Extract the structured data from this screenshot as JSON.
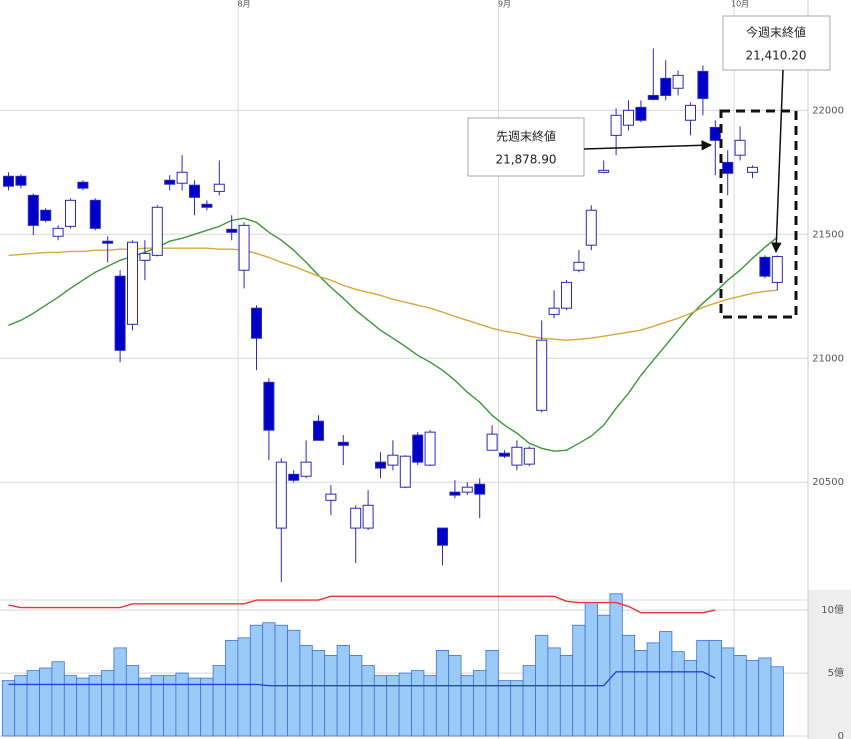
{
  "chart_data": [
    {
      "type": "candlestick",
      "categories": [
        null,
        null,
        null,
        null,
        null,
        null,
        null,
        null,
        null,
        null,
        null,
        null,
        null,
        null,
        null,
        null,
        null,
        null,
        null,
        "8月",
        null,
        null,
        null,
        null,
        null,
        null,
        null,
        null,
        null,
        null,
        null,
        null,
        null,
        null,
        null,
        null,
        null,
        null,
        null,
        null,
        "9月",
        null,
        null,
        null,
        null,
        null,
        null,
        null,
        null,
        null,
        null,
        null,
        null,
        null,
        null,
        null,
        null,
        null,
        null,
        "10月",
        null,
        null,
        null
      ],
      "open": [
        21734,
        21734,
        21657,
        21597,
        21492,
        21532,
        21710,
        21637,
        21472,
        21331,
        21137,
        21395,
        21415,
        21718,
        21706,
        21698,
        21621,
        21673,
        21520,
        21355,
        21202,
        20903,
        20315,
        20532,
        20524,
        20746,
        20427,
        20661,
        20315,
        20315,
        20581,
        20569,
        20480,
        20690,
        20569,
        20315,
        20460,
        20460,
        20492,
        20629,
        20617,
        20569,
        20573,
        20790,
        21177,
        21202,
        21355,
        21456,
        21750,
        21899,
        21940,
        22012,
        22060,
        22129,
        22089,
        21960,
        22157,
        21931,
        21790,
        21819,
        21750,
        21407,
        21306
      ],
      "high": [
        21750,
        21742,
        21665,
        21605,
        21536,
        21645,
        21718,
        21645,
        21492,
        21355,
        21476,
        21476,
        21617,
        21738,
        21819,
        21718,
        21637,
        21798,
        21577,
        21548,
        21214,
        20919,
        20597,
        20548,
        20669,
        20770,
        20488,
        20690,
        20407,
        20468,
        20621,
        20669,
        20609,
        20702,
        20710,
        20315,
        20508,
        20500,
        20516,
        20730,
        20629,
        20669,
        20645,
        21153,
        21274,
        21315,
        21436,
        21617,
        21798,
        22008,
        22040,
        22040,
        22250,
        22202,
        22161,
        22032,
        22181,
        21960,
        21839,
        21935,
        21778,
        21415,
        21415
      ],
      "low": [
        21677,
        21685,
        21496,
        21548,
        21476,
        21524,
        21677,
        21516,
        21387,
        20984,
        21113,
        21315,
        21411,
        21677,
        21677,
        21577,
        21597,
        21657,
        21476,
        21282,
        20952,
        20589,
        20097,
        20500,
        20516,
        20669,
        20367,
        20569,
        20174,
        20307,
        20516,
        20548,
        20476,
        20569,
        20565,
        20165,
        20436,
        20448,
        20355,
        20629,
        20597,
        20548,
        20565,
        20782,
        21161,
        21194,
        21347,
        21436,
        21746,
        21819,
        21919,
        21952,
        22040,
        22040,
        22060,
        21899,
        21980,
        21738,
        21657,
        21798,
        21726,
        21323,
        21274
      ],
      "close": [
        21694,
        21698,
        21536,
        21556,
        21524,
        21637,
        21686,
        21524,
        21464,
        21032,
        21468,
        21423,
        21609,
        21702,
        21750,
        21649,
        21609,
        21702,
        21508,
        21536,
        21081,
        20710,
        20581,
        20508,
        20581,
        20669,
        20452,
        20649,
        20395,
        20407,
        20557,
        20609,
        20605,
        20581,
        20702,
        20246,
        20448,
        20480,
        20452,
        20694,
        20605,
        20641,
        20637,
        21073,
        21202,
        21306,
        21387,
        21597,
        21758,
        21980,
        22000,
        21960,
        22044,
        22060,
        22141,
        22020,
        22048,
        21878.9,
        21746,
        21879,
        21770,
        21331,
        21410.2
      ],
      "up_color": "#ffffff",
      "down_color": "#0000c8",
      "edge_color": "#2a2ab8",
      "series": [
        {
          "color": "#3c963c",
          "values": [
            21133,
            21153,
            21181,
            21214,
            21246,
            21282,
            21315,
            21347,
            21371,
            21395,
            21411,
            21427,
            21448,
            21472,
            21484,
            21500,
            21516,
            21532,
            21556,
            21565,
            21548,
            21508,
            21476,
            21436,
            21387,
            21335,
            21286,
            21242,
            21194,
            21153,
            21113,
            21081,
            21048,
            21012,
            20984,
            20952,
            20911,
            20863,
            20823,
            20770,
            20730,
            20698,
            20657,
            20637,
            20625,
            20629,
            20657,
            20686,
            20730,
            20798,
            20859,
            20931,
            20992,
            21052,
            21113,
            21173,
            21222,
            21266,
            21315,
            21355,
            21403,
            21448,
            21488
          ]
        },
        {
          "color": "#d6a83e",
          "values": [
            21415,
            21419,
            21423,
            21427,
            21427,
            21431,
            21431,
            21436,
            21436,
            21440,
            21440,
            21444,
            21444,
            21444,
            21444,
            21444,
            21444,
            21440,
            21440,
            21436,
            21423,
            21407,
            21387,
            21371,
            21351,
            21331,
            21315,
            21294,
            21278,
            21266,
            21254,
            21238,
            21226,
            21214,
            21202,
            21186,
            21169,
            21153,
            21137,
            21121,
            21109,
            21101,
            21089,
            21081,
            21077,
            21073,
            21077,
            21081,
            21089,
            21097,
            21105,
            21113,
            21129,
            21145,
            21161,
            21181,
            21206,
            21222,
            21238,
            21250,
            21262,
            21270,
            21274
          ]
        }
      ],
      "ylim": [
        20025,
        22445
      ],
      "yticks": [
        22000,
        21500,
        21000,
        20500
      ],
      "grid": true,
      "annotations": [
        {
          "title": "先週末終値",
          "label": "21,878.90"
        },
        {
          "title": "今週末終値",
          "label": "21,410.20"
        }
      ]
    },
    {
      "type": "bar",
      "values": [
        4.4,
        4.8,
        5.2,
        5.4,
        5.9,
        4.8,
        4.6,
        4.8,
        5.2,
        7.0,
        5.6,
        4.6,
        4.8,
        4.8,
        5.0,
        4.6,
        4.6,
        5.6,
        7.6,
        7.8,
        8.8,
        9.0,
        8.8,
        8.4,
        7.2,
        6.8,
        6.4,
        7.2,
        6.4,
        5.6,
        4.8,
        4.8,
        5.0,
        5.2,
        4.8,
        6.8,
        6.4,
        4.8,
        5.2,
        6.8,
        4.4,
        4.4,
        5.6,
        8.0,
        7.0,
        6.4,
        8.8,
        10.6,
        9.6,
        11.3,
        8.0,
        6.8,
        7.4,
        8.3,
        6.7,
        6.0,
        7.6,
        7.6,
        7.0,
        6.4,
        6.0,
        6.2,
        5.5
      ],
      "color": "#9ccaf6",
      "edge_color": "#3a72d6",
      "series": [
        {
          "color": "#e83434",
          "values": [
            10.4,
            10.2,
            10.2,
            10.2,
            10.2,
            10.2,
            10.2,
            10.2,
            10.2,
            10.2,
            10.5,
            10.5,
            10.5,
            10.5,
            10.5,
            10.5,
            10.5,
            10.5,
            10.5,
            10.5,
            10.8,
            10.8,
            10.8,
            10.8,
            10.8,
            10.8,
            11.1,
            11.1,
            11.1,
            11.1,
            11.1,
            11.1,
            11.1,
            11.1,
            11.1,
            11.1,
            11.1,
            11.1,
            11.1,
            11.1,
            11.1,
            11.1,
            11.1,
            11.1,
            11.1,
            10.7,
            10.6,
            10.6,
            10.6,
            10.6,
            10.3,
            9.8,
            9.8,
            9.8,
            9.8,
            9.8,
            9.8,
            10.0,
            null,
            null,
            null,
            null,
            null
          ]
        },
        {
          "color": "#2244e0",
          "values": [
            4.1,
            4.1,
            4.1,
            4.1,
            4.1,
            4.1,
            4.1,
            4.1,
            4.1,
            4.1,
            4.1,
            4.1,
            4.1,
            4.1,
            4.1,
            4.1,
            4.1,
            4.1,
            4.1,
            4.1,
            4.1,
            4.0,
            4.0,
            4.0,
            4.0,
            4.0,
            4.0,
            4.0,
            4.0,
            4.0,
            4.0,
            4.0,
            4.0,
            4.0,
            4.0,
            4.0,
            4.0,
            4.0,
            4.0,
            4.0,
            4.0,
            4.0,
            4.0,
            4.0,
            4.0,
            4.0,
            4.0,
            4.0,
            4.0,
            5.1,
            5.1,
            5.1,
            5.1,
            5.1,
            5.1,
            5.1,
            5.1,
            4.6,
            null,
            null,
            null,
            null,
            null
          ]
        }
      ],
      "ylim": [
        0,
        11.6
      ],
      "yticks": [
        {
          "value": 10,
          "label": "10億"
        },
        {
          "value": 5,
          "label": "5億"
        },
        0
      ]
    }
  ]
}
